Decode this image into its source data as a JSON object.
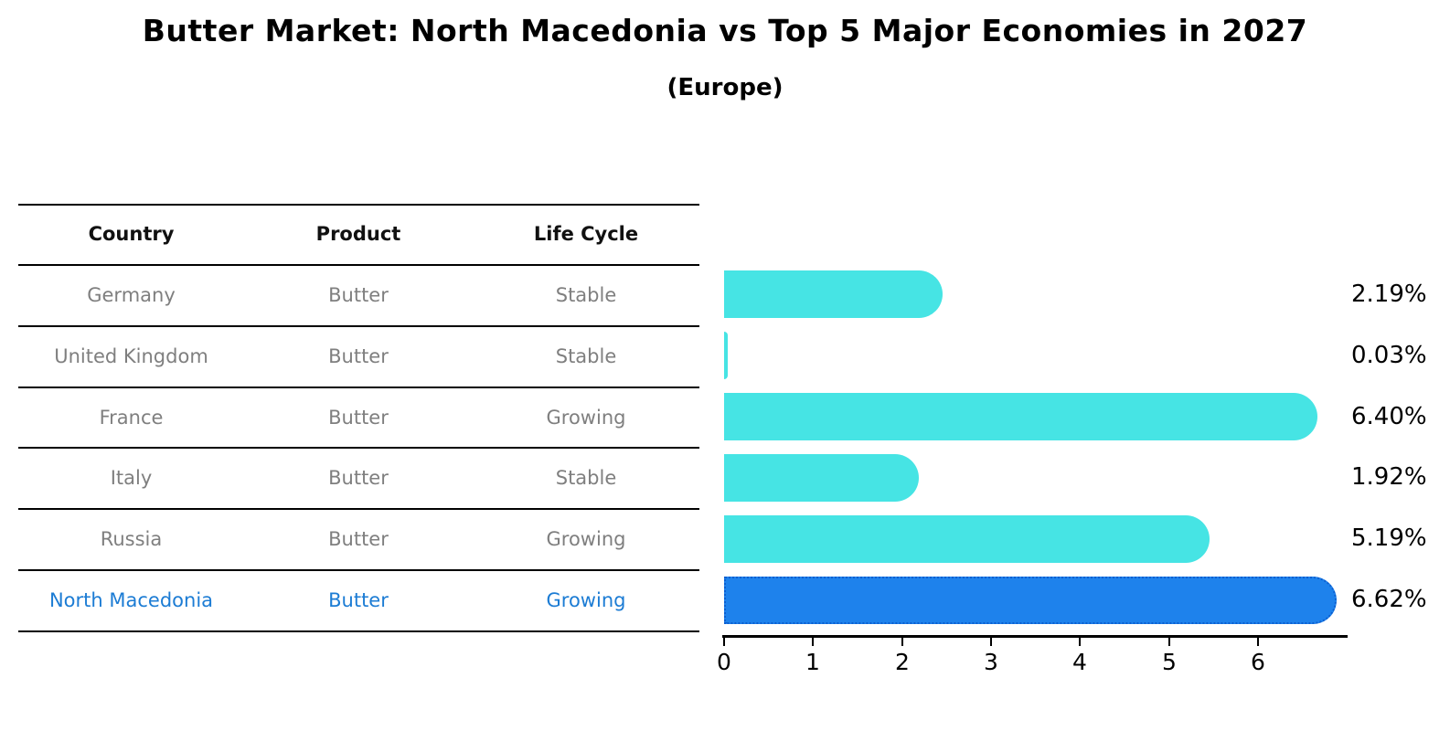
{
  "title": "Butter Market: North Macedonia vs Top 5 Major Economies in 2027",
  "subtitle": "(Europe)",
  "table": {
    "headers": [
      "Country",
      "Product",
      "Life Cycle"
    ],
    "rows": [
      {
        "country": "Germany",
        "product": "Butter",
        "life_cycle": "Stable",
        "highlighted": false
      },
      {
        "country": "United Kingdom",
        "product": "Butter",
        "life_cycle": "Stable",
        "highlighted": false
      },
      {
        "country": "France",
        "product": "Butter",
        "life_cycle": "Growing",
        "highlighted": false
      },
      {
        "country": "Italy",
        "product": "Butter",
        "life_cycle": "Stable",
        "highlighted": false
      },
      {
        "country": "Russia",
        "product": "Butter",
        "life_cycle": "Growing",
        "highlighted": false
      },
      {
        "country": "North Macedonia",
        "product": "Butter",
        "life_cycle": "Growing",
        "highlighted": true
      }
    ]
  },
  "chart_data": {
    "type": "bar",
    "orientation": "horizontal",
    "title": "Butter Market: North Macedonia vs Top 5 Major Economies in 2027 (Europe)",
    "categories": [
      "Germany",
      "United Kingdom",
      "France",
      "Italy",
      "Russia",
      "North Macedonia"
    ],
    "values": [
      2.19,
      0.03,
      6.4,
      1.92,
      5.19,
      6.62
    ],
    "value_labels": [
      "2.19%",
      "0.03%",
      "6.40%",
      "1.92%",
      "5.19%",
      "6.62%"
    ],
    "x_ticks": [
      "0",
      "1",
      "2",
      "3",
      "4",
      "5",
      "6"
    ],
    "xlim": [
      0,
      7
    ],
    "grid": false,
    "legend": false,
    "highlight_index": 5
  },
  "colors": {
    "bar": "#46e4e4",
    "highlight_bar": "#1e82ec",
    "highlight_border": "#0c5fd0",
    "highlight_text": "#1c7cd4",
    "cell_text": "#7f7f7f",
    "header_text": "#111111",
    "axis": "#000000"
  }
}
